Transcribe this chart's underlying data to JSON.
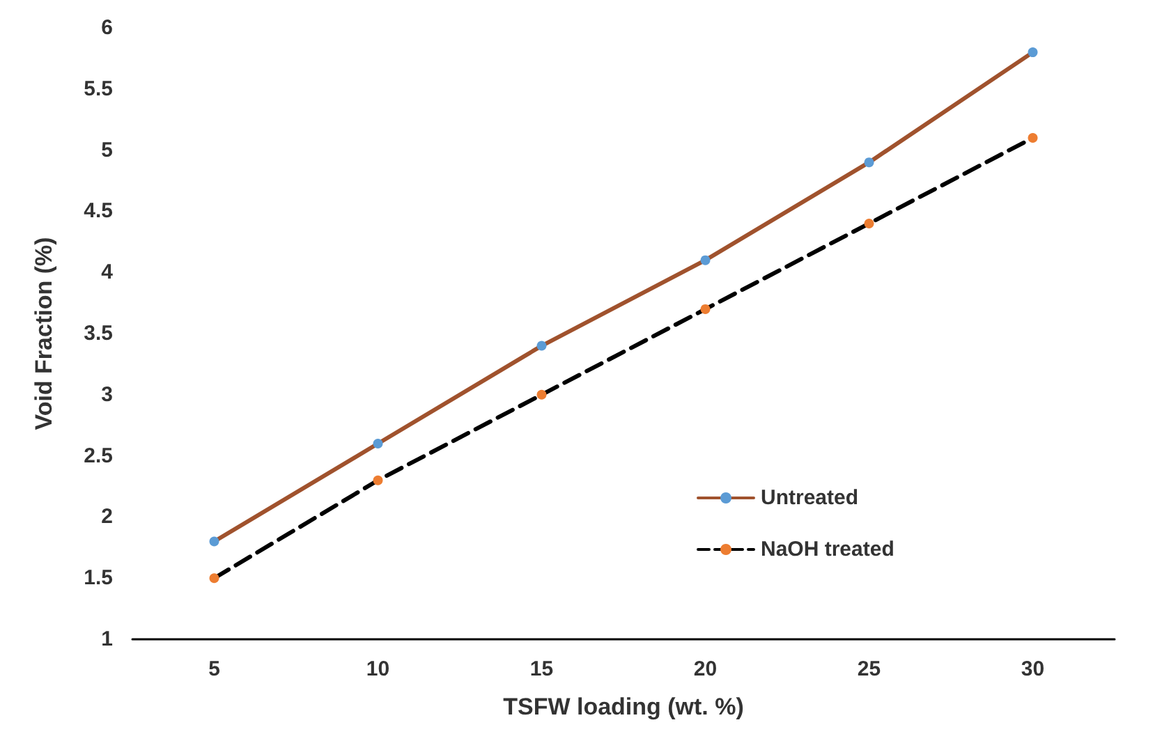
{
  "chart_data": {
    "type": "line",
    "xlabel": "TSFW loading (wt. %)",
    "ylabel": "Void Fraction (%)",
    "categories": [
      "5",
      "10",
      "15",
      "20",
      "25",
      "30"
    ],
    "series": [
      {
        "name": "Untreated",
        "color": "#a0522d",
        "colors": [
          "#5b9bd5",
          "#5b9bd5",
          "#5b9bd5",
          "#5b9bd5",
          "#5b9bd5",
          "#5b9bd5"
        ],
        "line_style": "solid",
        "values": [
          1.8,
          2.6,
          3.4,
          4.1,
          4.9,
          5.8
        ]
      },
      {
        "name": "NaOH treated",
        "color": "#000000",
        "colors": [
          "#ed7d31",
          "#ed7d31",
          "#ed7d31",
          "#ed7d31",
          "#ed7d31",
          "#ed7d31"
        ],
        "line_style": "dashed",
        "values": [
          1.5,
          2.3,
          3.0,
          3.7,
          4.4,
          5.1
        ]
      }
    ],
    "ylim": [
      1,
      6
    ],
    "yticks": [
      1,
      1.5,
      2,
      2.5,
      3,
      3.5,
      4,
      4.5,
      5,
      5.5,
      6
    ],
    "grid": false,
    "legend": "bottom right",
    "marker": "circle"
  }
}
